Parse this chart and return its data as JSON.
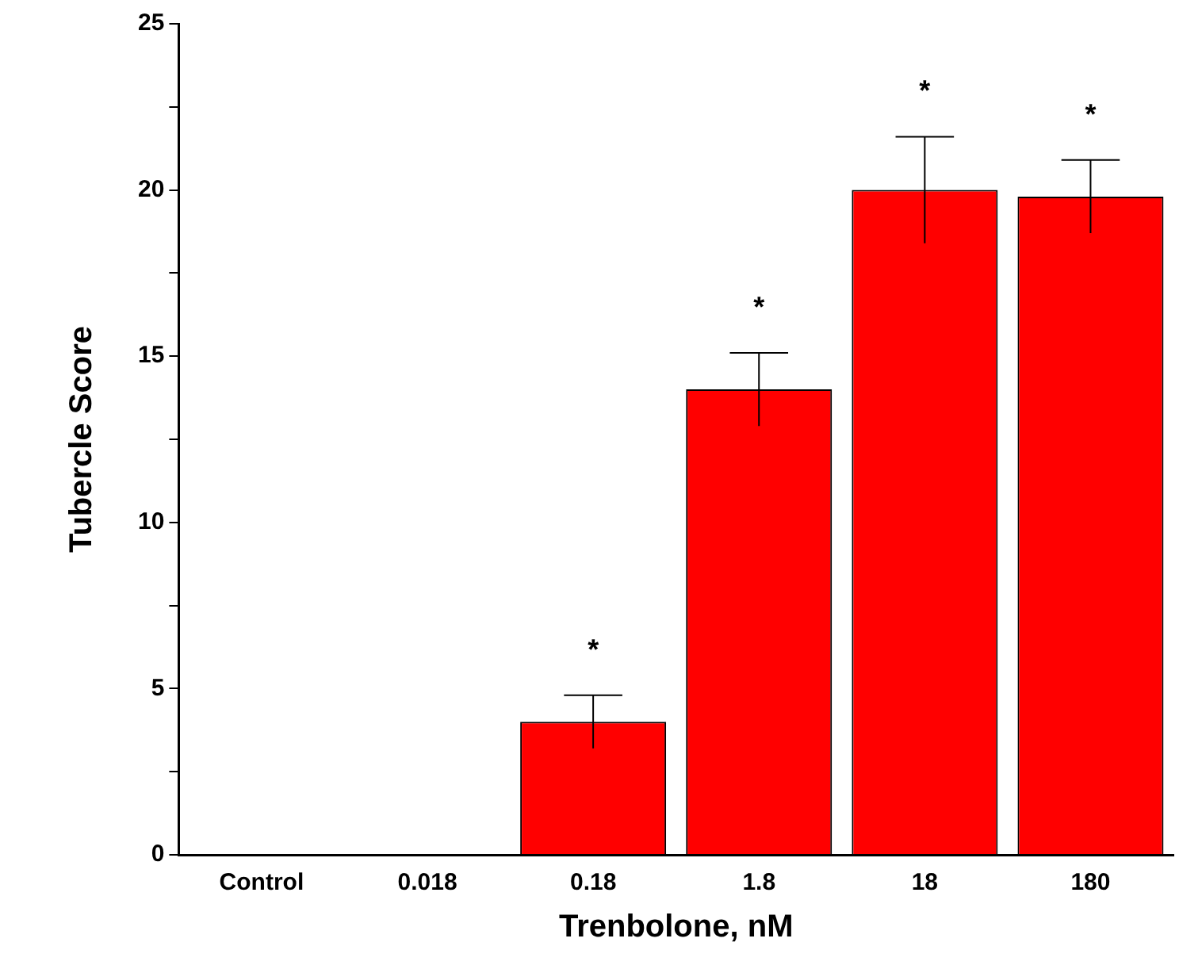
{
  "chart_data": {
    "type": "bar",
    "xlabel": "Trenbolone, nM",
    "ylabel": "Tubercle Score",
    "categories": [
      "Control",
      "0.018",
      "0.18",
      "1.8",
      "18",
      "180"
    ],
    "values": [
      0,
      0,
      4,
      14,
      20,
      19.8
    ],
    "errors": [
      null,
      null,
      0.8,
      1.1,
      1.6,
      1.1
    ],
    "color": "#ff0000",
    "ylim": [
      0,
      25
    ],
    "yticks": [
      0,
      {
        "value": 2.5,
        "label": null
      },
      5,
      {
        "value": 7.5,
        "label": null
      },
      10,
      {
        "value": 12.5,
        "label": null
      },
      15,
      {
        "value": 17.5,
        "label": null
      },
      20,
      {
        "value": 22.5,
        "label": null
      },
      25
    ],
    "grid": false,
    "annotations": [
      "*",
      "*",
      "*",
      "*"
    ]
  }
}
